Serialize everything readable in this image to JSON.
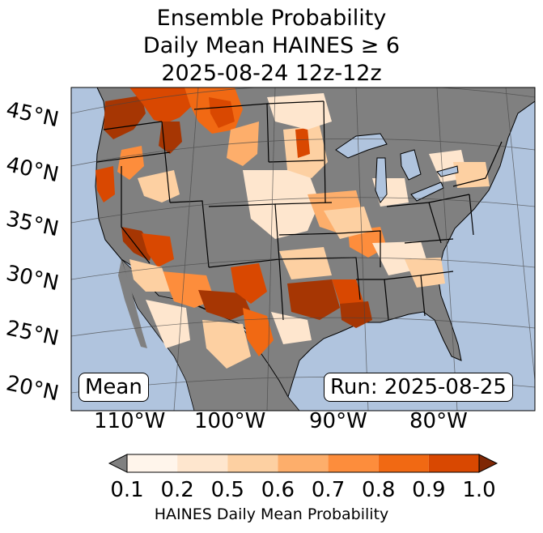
{
  "title": {
    "line1": "Ensemble Probability",
    "line2": "Daily Mean HAINES ≥ 6",
    "line3": "2025-08-24 12z-12z"
  },
  "map": {
    "lat_labels": [
      "45°N",
      "40°N",
      "35°N",
      "30°N",
      "25°N",
      "20°N"
    ],
    "lon_labels": [
      "110°W",
      "100°W",
      "90°W",
      "80°W"
    ],
    "mean_label": "Mean",
    "run_label": "Run: 2025-08-25",
    "colors": {
      "ocean": "#b0c4de",
      "land_nodata": "#808080",
      "border": "#000000"
    }
  },
  "colorbar": {
    "label": "HAINES Daily Mean Probability",
    "ticks": [
      "0.1",
      "0.2",
      "0.5",
      "0.6",
      "0.7",
      "0.8",
      "0.9",
      "1.0"
    ],
    "colors": [
      "#fff5eb",
      "#fee6ce",
      "#fdd0a2",
      "#fdae6b",
      "#fd8d3c",
      "#f16913",
      "#d94801",
      "#a63603"
    ],
    "under_color": "#808080",
    "over_color": "#7f2704"
  }
}
